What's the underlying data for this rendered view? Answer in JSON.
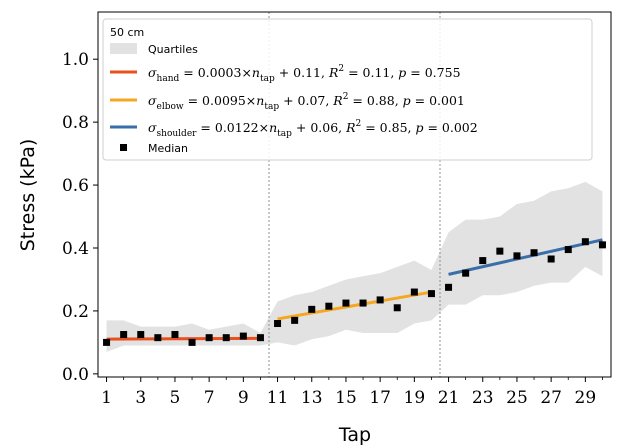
{
  "chart_data": {
    "type": "line",
    "xlabel": "Tap",
    "ylabel": "Stress (kPa)",
    "xlim": [
      0.5,
      30.5
    ],
    "ylim": [
      -0.01,
      1.15
    ],
    "x_ticks": [
      1,
      3,
      5,
      7,
      9,
      11,
      13,
      15,
      17,
      19,
      21,
      23,
      25,
      27,
      29
    ],
    "x_tick_labels": [
      "1",
      "3",
      "5",
      "7",
      "9",
      "11",
      "13",
      "15",
      "17",
      "19",
      "21",
      "23",
      "25",
      "27",
      "29"
    ],
    "y_ticks": [
      0.0,
      0.2,
      0.4,
      0.6,
      0.8,
      1.0
    ],
    "y_tick_labels": [
      "0.0",
      "0.2",
      "0.4",
      "0.6",
      "0.8",
      "1.0"
    ],
    "grid": false,
    "legend_position": "top-left",
    "legend_title": "50 cm",
    "vlines": [
      10.5,
      20.5
    ],
    "median": {
      "name": "Median",
      "x": [
        1,
        2,
        3,
        4,
        5,
        6,
        7,
        8,
        9,
        10,
        11,
        12,
        13,
        14,
        15,
        16,
        17,
        18,
        19,
        20,
        21,
        22,
        23,
        24,
        25,
        26,
        27,
        28,
        29,
        30
      ],
      "y": [
        0.1,
        0.125,
        0.125,
        0.115,
        0.125,
        0.1,
        0.115,
        0.115,
        0.12,
        0.115,
        0.16,
        0.17,
        0.205,
        0.215,
        0.225,
        0.225,
        0.235,
        0.21,
        0.26,
        0.255,
        0.275,
        0.32,
        0.36,
        0.39,
        0.375,
        0.385,
        0.365,
        0.395,
        0.42,
        0.41
      ],
      "color": "#000000"
    },
    "quartiles": {
      "name": "Quartiles",
      "x": [
        1,
        2,
        3,
        4,
        5,
        6,
        7,
        8,
        9,
        10,
        11,
        12,
        13,
        14,
        15,
        16,
        17,
        18,
        19,
        20,
        21,
        22,
        23,
        24,
        25,
        26,
        27,
        28,
        29,
        30
      ],
      "lower": [
        0.07,
        0.09,
        0.09,
        0.09,
        0.09,
        0.09,
        0.09,
        0.09,
        0.09,
        0.09,
        0.1,
        0.09,
        0.11,
        0.12,
        0.14,
        0.13,
        0.13,
        0.13,
        0.16,
        0.17,
        0.22,
        0.22,
        0.25,
        0.25,
        0.26,
        0.28,
        0.29,
        0.29,
        0.34,
        0.31
      ],
      "upper": [
        0.17,
        0.17,
        0.15,
        0.15,
        0.15,
        0.16,
        0.14,
        0.15,
        0.16,
        0.13,
        0.23,
        0.25,
        0.26,
        0.28,
        0.3,
        0.31,
        0.32,
        0.34,
        0.36,
        0.33,
        0.45,
        0.49,
        0.49,
        0.5,
        0.54,
        0.55,
        0.58,
        0.59,
        0.61,
        0.58
      ],
      "color": "#e2e2e2"
    },
    "fits": [
      {
        "name": "hand",
        "label_tex": "σ_hand = 0.0003×n_tap + 0.11, R^2 = 0.11, p = 0.755",
        "slope": 0.0003,
        "intercept": 0.11,
        "r2": "0.11",
        "p": "0.755",
        "x_range": [
          1,
          10
        ],
        "color": "#e8501e"
      },
      {
        "name": "elbow",
        "label_tex": "σ_elbow = 0.0095×n_tap + 0.07, R^2 = 0.88, p = 0.001",
        "slope": 0.0095,
        "intercept": 0.07,
        "r2": "0.88",
        "p": "0.001",
        "x_range": [
          11,
          20
        ],
        "color": "#f5a623"
      },
      {
        "name": "shoulder",
        "label_tex": "σ_shoulder = 0.0122×n_tap + 0.06, R^2 = 0.85, p = 0.002",
        "slope": 0.0122,
        "intercept": 0.06,
        "r2": "0.85",
        "p": "0.002",
        "x_range": [
          21,
          30
        ],
        "color": "#3a6ea8"
      }
    ],
    "legend": {
      "title": "50 cm",
      "quartiles_label": "Quartiles",
      "median_label": "Median",
      "hand": {
        "sub": "hand",
        "mid": " = 0.0003×",
        "var": "n",
        "varsub": "tap",
        "rest": " + 0.11, ",
        "r2": "R",
        "r2tail": " = 0.11, ",
        "p": "p",
        "ptail": " = 0.755"
      },
      "elbow": {
        "sub": "elbow",
        "mid": " = 0.0095×",
        "var": "n",
        "varsub": "tap",
        "rest": " + 0.07, ",
        "r2": "R",
        "r2tail": " = 0.88, ",
        "p": "p",
        "ptail": " = 0.001"
      },
      "shoulder": {
        "sub": "shoulder",
        "mid": " = 0.0122×",
        "var": "n",
        "varsub": "tap",
        "rest": " + 0.06, ",
        "r2": "R",
        "r2tail": " = 0.85, ",
        "p": "p",
        "ptail": " = 0.002"
      }
    }
  }
}
